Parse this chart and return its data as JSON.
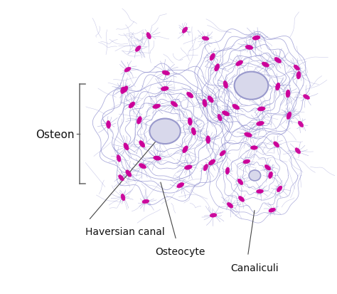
{
  "bg_color": "#ffffff",
  "line_color": "#8888cc",
  "line_color2": "#9999cc",
  "osteocyte_color": "#cc0099",
  "canal_fill": "#d8d8eb",
  "canal_edge": "#9999cc",
  "label_color": "#111111",
  "arrow_color": "#444444",
  "labels": {
    "osteon": "Osteon",
    "haversian": "Haversian canal",
    "osteocyte": "Osteocyte",
    "canaliculi": "Canaliculi"
  },
  "figsize": [
    4.74,
    4.14
  ],
  "dpi": 100
}
